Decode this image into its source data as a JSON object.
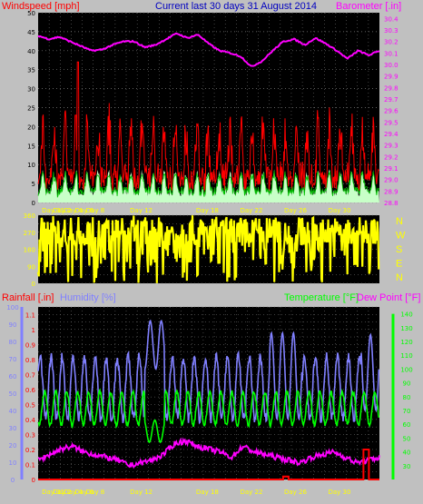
{
  "header": {
    "left": "Windspeed [mph]",
    "center": "Current last 30 days 31 August 2014",
    "right": "Barometer [.in]"
  },
  "lower_header": {
    "rain": "Rainfall [.in]",
    "humidity": "Humidity [%]",
    "temperature": "Temperature [°F]",
    "dewpoint": "Dew Point [°F]"
  },
  "colors": {
    "bg": "#000000",
    "frame": "#c0c0c0",
    "grid": "#808080",
    "wind": "#ff0000",
    "gust_fill": "#c8ffc8",
    "avg": "#00c000",
    "baro": "#ff00ff",
    "dir": "#ffff00",
    "rain": "#ff0000",
    "hum": "#8080ff",
    "temp": "#00ff00",
    "dew": "#ff00ff",
    "date": "#ffff00"
  },
  "chart_data": [
    {
      "type": "line",
      "name": "wind-barometer",
      "xlabel": "",
      "date_ticks": [
        "Day 31",
        "Day 2",
        "Day 4",
        "Day 6",
        "Day 8",
        "Day 12",
        "Day 18",
        "Day 22",
        "Day 26",
        "Day 30"
      ],
      "left_axis": {
        "label": "Windspeed [mph]",
        "ticks": [
          0,
          5,
          10,
          15,
          20,
          25,
          30,
          35,
          40,
          45,
          50
        ],
        "range": [
          0,
          50
        ]
      },
      "right_axis": {
        "label": "Barometer [.in]",
        "ticks": [
          28.8,
          28.9,
          29,
          29.1,
          29.2,
          29.3,
          29.4,
          29.5,
          29.6,
          29.7,
          29.8,
          29.9,
          30,
          30.1,
          30.2,
          30.3,
          30.4
        ],
        "range": [
          28.8,
          30.45
        ]
      },
      "series": [
        {
          "name": "Barometer",
          "axis": "right",
          "values": [
            30.25,
            30.22,
            30.24,
            30.2,
            30.16,
            30.12,
            30.13,
            30.17,
            30.2,
            30.2,
            30.15,
            30.17,
            30.22,
            30.27,
            30.23,
            30.26,
            30.18,
            30.12,
            30.1,
            30.07,
            29.98,
            30.03,
            30.12,
            30.2,
            30.22,
            30.17,
            30.23,
            30.18,
            30.12,
            30.05,
            30.12,
            30.08,
            30.12
          ]
        }
      ]
    },
    {
      "type": "line",
      "name": "wind-direction",
      "ticks": [
        0,
        45,
        90,
        135,
        180,
        225,
        270,
        315,
        360
      ],
      "range": [
        0,
        360
      ],
      "compass": [
        "N",
        "W",
        "S",
        "E",
        "N"
      ]
    },
    {
      "type": "line",
      "name": "rain-humidity-temperature",
      "date_ticks": [
        "Day 31",
        "Day 2",
        "Day 4",
        "Day 6",
        "Day 8",
        "Day 12",
        "Day 18",
        "Day 22",
        "Day 26",
        "Day 30"
      ],
      "humidity_axis": {
        "label": "Humidity [%]",
        "ticks": [
          0,
          10,
          20,
          30,
          40,
          50,
          60,
          70,
          80,
          90,
          100
        ],
        "range": [
          0,
          100
        ]
      },
      "rain_axis": {
        "label": "Rainfall [.in]",
        "ticks": [
          0,
          0.05,
          0.1,
          0.15,
          0.2,
          0.25,
          0.3,
          0.35,
          0.4,
          0.45,
          0.5,
          0.55,
          0.6,
          0.65,
          0.7,
          0.75,
          0.8,
          0.85,
          0.9,
          0.95,
          1,
          1.05,
          1.1,
          1.15
        ],
        "tick_labels": [
          "0",
          "",
          "0.1",
          "",
          "0.2",
          "",
          "0.3",
          "",
          "0.4",
          "",
          "0.5",
          "",
          "0.6",
          "",
          "0.7",
          "",
          "0.8",
          "",
          "0.9",
          "",
          "1",
          "",
          "1.1",
          ""
        ],
        "range": [
          0,
          1.15
        ]
      },
      "temp_axis": {
        "label": "Temperature [°F]",
        "ticks": [
          20,
          30,
          40,
          50,
          60,
          70,
          80,
          90,
          100,
          110,
          120,
          130,
          140
        ],
        "range": [
          20,
          145
        ]
      },
      "series": [
        {
          "name": "Dew Point",
          "axis": "temp",
          "values": [
            34,
            38,
            42,
            44,
            40,
            38,
            36,
            34,
            30,
            32,
            34,
            38,
            46,
            48,
            44,
            42,
            40,
            36,
            44,
            40,
            38,
            36,
            34,
            32,
            36,
            38,
            40,
            36,
            32,
            34,
            36
          ]
        }
      ],
      "rain_events": [
        {
          "day": 22.5,
          "value": 0.02
        },
        {
          "day": 29.8,
          "value": 0.2
        }
      ]
    }
  ]
}
